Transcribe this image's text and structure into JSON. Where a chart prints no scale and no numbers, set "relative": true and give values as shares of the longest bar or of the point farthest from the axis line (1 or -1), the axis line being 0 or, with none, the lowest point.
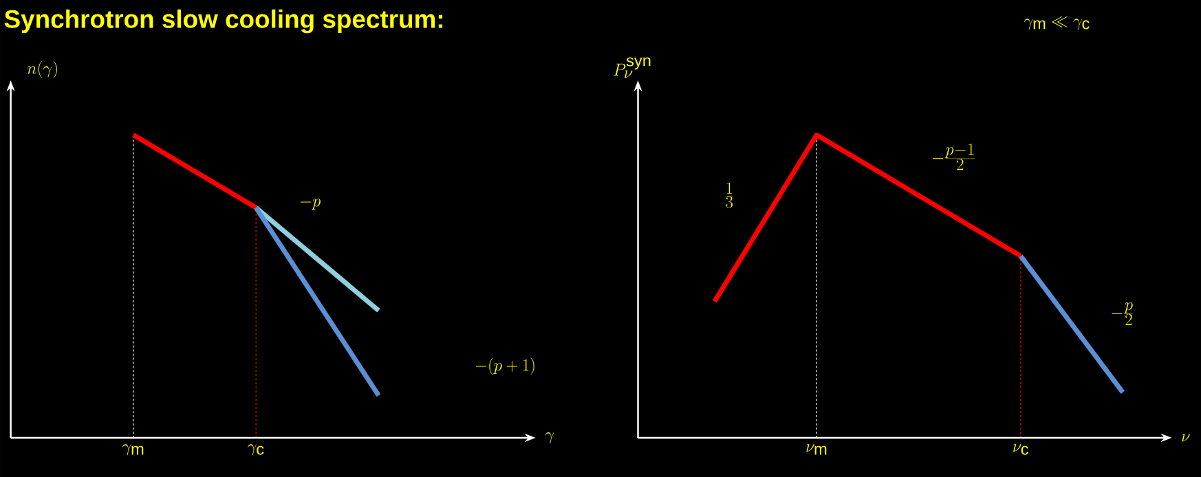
{
  "chart_data": [
    {
      "type": "line",
      "title": "Synchrotron slow cooling spectrum:",
      "xlabel": "\\gamma",
      "ylabel": "n(\\gamma)",
      "relative": true,
      "categories": [
        "\\gamma_{\\mathrm{m}}",
        "\\gamma_{\\mathrm{c}}",
        null
      ],
      "series": [
        {
          "color": "#ff0000",
          "values": [
            1,
            0.76,
            null
          ]
        },
        {
          "color": "#8ecfe0",
          "values": [
            null,
            0.76,
            0.42
          ]
        },
        {
          "color": "#5b8fd6",
          "values": [
            null,
            0.76,
            0.14
          ]
        }
      ],
      "ref_lines": [
        {
          "axis": "x",
          "value": "\\gamma_{\\mathrm{m}}",
          "color": "#ffffff",
          "line_style": "dashed"
        },
        {
          "axis": "x",
          "value": "\\gamma_{\\mathrm{c}}",
          "color": "#ff0000",
          "line_style": "dashed"
        }
      ],
      "annotations": [
        "-p",
        "-(p+1)"
      ]
    },
    {
      "type": "line",
      "xlabel": "\\nu",
      "ylabel": "P_{\\nu}^{\\mathrm{syn}}",
      "relative": true,
      "categories": [
        null,
        "\\nu_{\\mathrm{m}}",
        null,
        "\\nu_{\\mathrm{c}}",
        null
      ],
      "series": [
        {
          "color": "#ff0000",
          "values": [
            0.45,
            1,
            0.8,
            0.6,
            null
          ]
        },
        {
          "color": "#5b8fd6",
          "values": [
            null,
            null,
            null,
            0.6,
            0.15
          ]
        }
      ],
      "ref_lines": [
        {
          "axis": "x",
          "value": "\\nu_{\\mathrm{m}}",
          "color": "#ffffff",
          "line_style": "dashed"
        },
        {
          "axis": "x",
          "value": "\\nu_{\\mathrm{c}}",
          "color": "#ff0000",
          "line_style": "dashed"
        }
      ],
      "annotations": [
        "\\gamma_{\\mathrm{m}} \\ll \\gamma_{\\mathrm{c}}",
        "\\frac{1}{3}",
        "-\\frac{p-1}{2}",
        "-\\frac{p}{2}"
      ]
    }
  ]
}
